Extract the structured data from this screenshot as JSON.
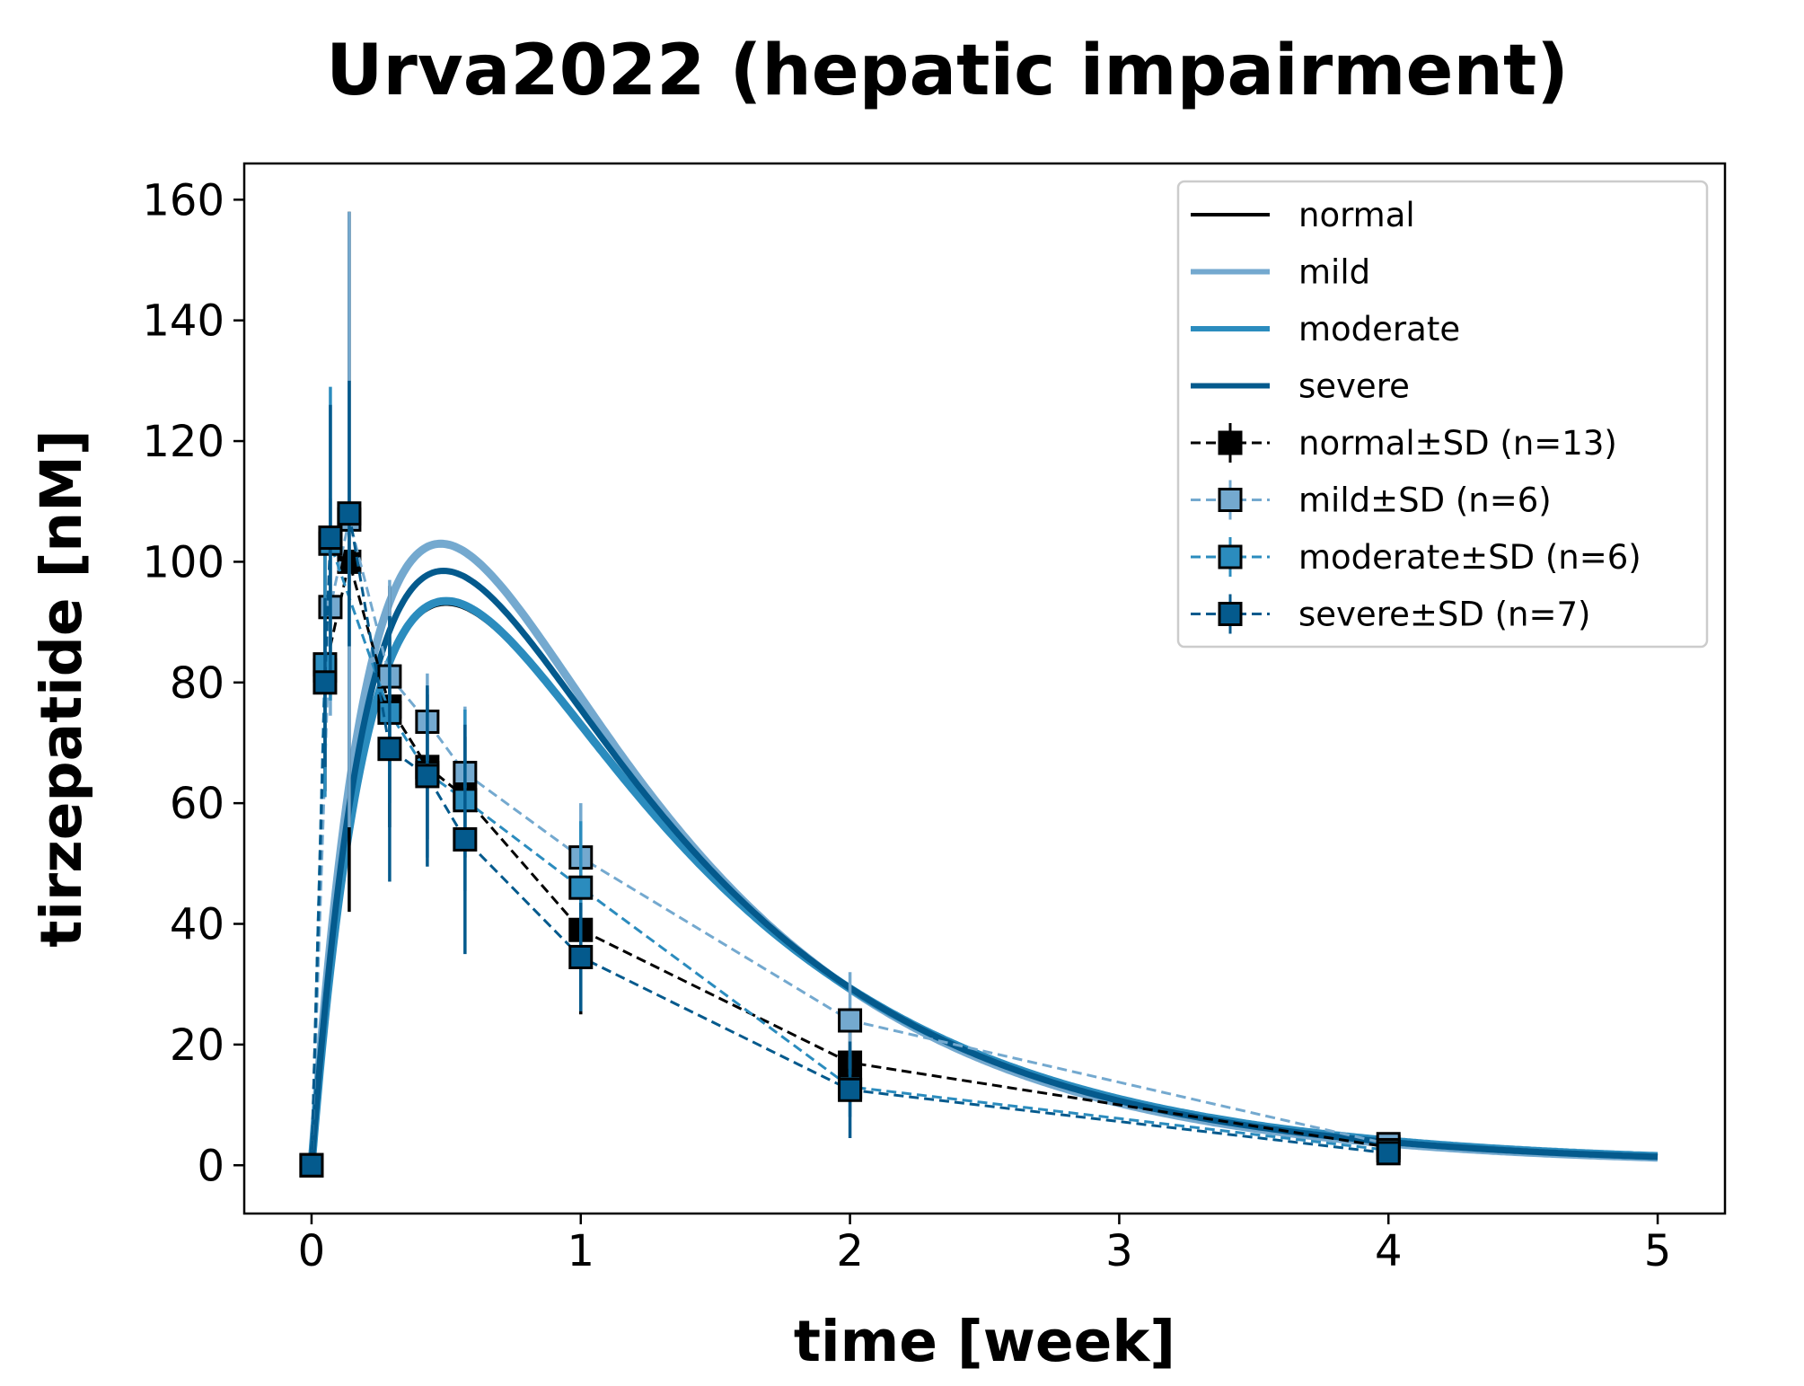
{
  "chart_data": {
    "type": "line",
    "title": "Urva2022 (hepatic impairment)",
    "xlabel": "time [week]",
    "ylabel": "tirzepatide [nM]",
    "xlim": [
      -0.25,
      5.25
    ],
    "ylim": [
      -8,
      166
    ],
    "xticks": [
      0,
      1,
      2,
      3,
      4,
      5
    ],
    "yticks": [
      0,
      20,
      40,
      60,
      80,
      100,
      120,
      140,
      160
    ],
    "grid": false,
    "legend_position": "top-right",
    "colors": {
      "normal": "#000000",
      "mild": "#74a9cf",
      "moderate": "#2b8cbe",
      "severe": "#045a8d"
    },
    "model_series": [
      {
        "name": "normal",
        "color": "#000000",
        "width": 4,
        "peak": 93,
        "tmax": 0.5,
        "end": 1.1
      },
      {
        "name": "mild",
        "color": "#74a9cf",
        "width": 9,
        "peak": 103,
        "tmax": 0.48,
        "end": 0.9
      },
      {
        "name": "moderate",
        "color": "#2b8cbe",
        "width": 9,
        "peak": 93.5,
        "tmax": 0.5,
        "end": 1.1
      },
      {
        "name": "severe",
        "color": "#045a8d",
        "width": 7,
        "peak": 98.5,
        "tmax": 0.49,
        "end": 1.0
      }
    ],
    "data_series": [
      {
        "name": "normal±SD (n=13)",
        "color": "#000000",
        "x": [
          0,
          0.05,
          0.14,
          0.29,
          0.43,
          0.57,
          1,
          2,
          4
        ],
        "y": [
          0,
          82,
          100,
          76,
          66,
          61,
          39,
          17,
          3
        ],
        "sd": [
          0,
          20,
          58,
          20,
          12,
          10,
          14,
          6,
          1
        ]
      },
      {
        "name": "mild±SD (n=6)",
        "color": "#74a9cf",
        "x": [
          0,
          0.07,
          0.14,
          0.29,
          0.43,
          0.57,
          1,
          2,
          4
        ],
        "y": [
          0,
          92.5,
          107,
          81,
          73.5,
          65,
          51,
          24,
          3.5
        ],
        "sd": [
          0,
          18,
          51,
          16,
          8,
          11,
          9,
          8,
          1
        ]
      },
      {
        "name": "moderate±SD (n=6)",
        "color": "#2b8cbe",
        "x": [
          0,
          0.05,
          0.07,
          0.29,
          0.43,
          0.57,
          1,
          2,
          4
        ],
        "y": [
          0,
          83,
          103,
          75,
          65,
          60.5,
          46,
          13,
          2.5
        ],
        "sd": [
          0,
          22,
          26,
          15,
          14,
          15,
          11,
          5,
          1
        ]
      },
      {
        "name": "severe±SD (n=7)",
        "color": "#045a8d",
        "x": [
          0,
          0.05,
          0.07,
          0.14,
          0.29,
          0.43,
          0.57,
          1,
          2,
          4
        ],
        "y": [
          0,
          80,
          104,
          108,
          69,
          64.5,
          54,
          34.5,
          12.5,
          2
        ],
        "sd": [
          0,
          14,
          22,
          22,
          22,
          15,
          19,
          9,
          8,
          1
        ]
      }
    ],
    "legend": [
      {
        "label": "normal",
        "kind": "line",
        "color": "#000000"
      },
      {
        "label": "mild",
        "kind": "line",
        "color": "#74a9cf"
      },
      {
        "label": "moderate",
        "kind": "line",
        "color": "#2b8cbe"
      },
      {
        "label": "severe",
        "kind": "line",
        "color": "#045a8d"
      },
      {
        "label": "normal±SD (n=13)",
        "kind": "marker",
        "color": "#000000"
      },
      {
        "label": "mild±SD (n=6)",
        "kind": "marker",
        "color": "#74a9cf"
      },
      {
        "label": "moderate±SD (n=6)",
        "kind": "marker",
        "color": "#2b8cbe"
      },
      {
        "label": "severe±SD (n=7)",
        "kind": "marker",
        "color": "#045a8d"
      }
    ]
  }
}
